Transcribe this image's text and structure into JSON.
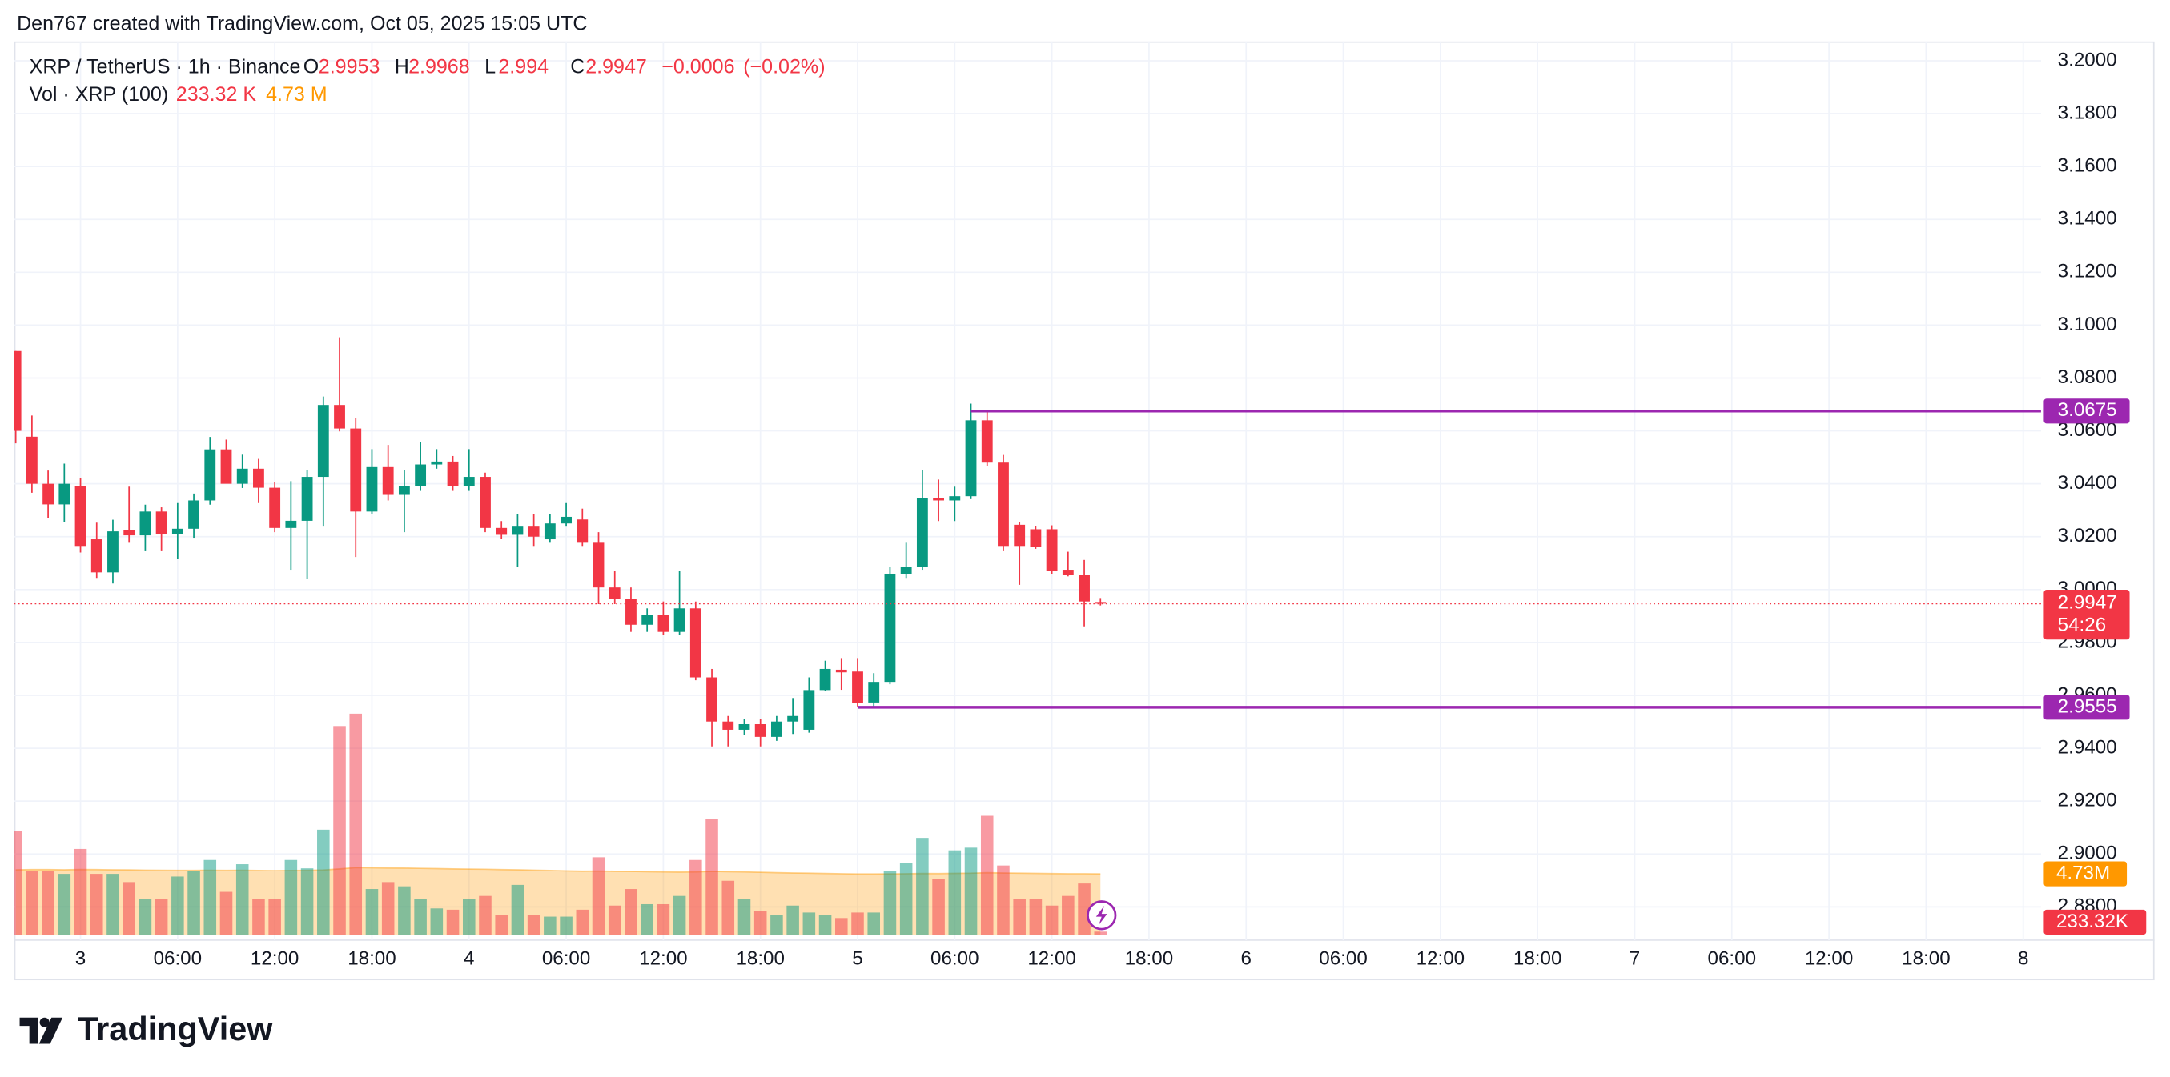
{
  "attribution": "Den767 created with TradingView.com, Oct 05, 2025 15:05 UTC",
  "footer": {
    "brand": "TradingView"
  },
  "chart_data": {
    "type": "candlestick",
    "title": "XRP / TetherUS · 1h · Binance",
    "legend_ohlc": [
      {
        "name": "O",
        "value": 2.9953
      },
      {
        "name": "H",
        "value": 2.9968
      },
      {
        "name": "L",
        "value": 2.994
      },
      {
        "name": "C",
        "value": 2.9947
      }
    ],
    "change": {
      "value": -0.0006,
      "label": "−0.0006"
    },
    "change_pct": {
      "value": -0.02,
      "label": "(−0.02%)"
    },
    "volume_title": "Vol · XRP (100)",
    "volume_legend": [
      {
        "value": 233320,
        "label": "233.32 K"
      },
      {
        "value": 4730000,
        "label": "4.73 M"
      }
    ],
    "open": [
      3.0902,
      3.0578,
      3.04,
      3.0322,
      3.039,
      3.019,
      3.0065,
      3.0225,
      3.0205,
      3.0295,
      3.021,
      3.023,
      3.0337,
      3.053,
      3.04,
      3.0457,
      3.0385,
      3.0233,
      3.026,
      3.0426,
      3.0698,
      3.0609,
      3.0295,
      3.0463,
      3.0358,
      3.039,
      3.0473,
      3.0484,
      3.039,
      3.0426,
      3.0233,
      3.0207,
      3.0238,
      3.019,
      3.025,
      3.0265,
      3.018,
      3.0008,
      2.9966,
      2.9867,
      2.9903,
      2.984,
      2.9929,
      2.9668,
      2.9501,
      2.947,
      2.9491,
      2.9443,
      2.9501,
      2.947,
      2.962,
      2.9697,
      2.969,
      2.9573,
      2.9651,
      3.006,
      3.0085,
      3.0347,
      3.0337,
      3.0353,
      3.064,
      3.048,
      3.0245,
      3.0228,
      3.0228,
      3.0075,
      3.0055,
      2.9953
    ],
    "high": [
      3.0902,
      3.0658,
      3.045,
      3.0476,
      3.042,
      3.0253,
      3.0264,
      3.0389,
      3.0321,
      3.0311,
      3.0327,
      3.0363,
      3.0577,
      3.0567,
      3.051,
      3.0494,
      3.0405,
      3.041,
      3.0452,
      3.073,
      3.0954,
      3.0647,
      3.0531,
      3.0547,
      3.0452,
      3.0557,
      3.0531,
      3.0505,
      3.0531,
      3.0442,
      3.0259,
      3.0285,
      3.0285,
      3.0285,
      3.0327,
      3.0306,
      3.0217,
      3.0071,
      3.0008,
      2.9929,
      2.9955,
      3.0071,
      2.9955,
      2.97,
      2.9522,
      2.9512,
      2.9512,
      2.9522,
      2.959,
      2.9668,
      2.9731,
      2.9741,
      2.9741,
      2.9684,
      3.0086,
      3.018,
      3.0453,
      3.0416,
      3.0389,
      3.0703,
      3.0675,
      3.0509,
      3.0255,
      3.024,
      3.0243,
      3.0143,
      3.0112,
      2.9968
    ],
    "low": [
      3.0553,
      3.0366,
      3.027,
      3.0255,
      3.014,
      3.0044,
      3.0023,
      3.018,
      3.0148,
      3.0148,
      3.0117,
      3.0196,
      3.0321,
      3.0415,
      3.0384,
      3.0327,
      3.0217,
      3.0075,
      3.004,
      3.0238,
      3.0598,
      3.0123,
      3.0285,
      3.0337,
      3.0217,
      3.0373,
      3.0457,
      3.0373,
      3.0373,
      3.0217,
      3.0191,
      3.0086,
      3.0165,
      3.018,
      3.0238,
      3.0165,
      2.9945,
      2.9945,
      2.984,
      2.984,
      2.983,
      2.983,
      2.9657,
      2.9407,
      2.9407,
      2.9449,
      2.9407,
      2.9428,
      2.9454,
      2.9459,
      2.9616,
      2.9621,
      2.9558,
      2.9558,
      2.9642,
      3.0044,
      3.0075,
      3.0259,
      3.0259,
      3.0342,
      3.0468,
      3.0148,
      3.0018,
      3.0154,
      3.006,
      3.005,
      2.9861,
      2.994
    ],
    "close": [
      3.06,
      3.04,
      3.0322,
      3.04,
      3.0165,
      3.0065,
      3.022,
      3.0205,
      3.0295,
      3.021,
      3.023,
      3.0337,
      3.053,
      3.04,
      3.0457,
      3.0385,
      3.0233,
      3.026,
      3.0426,
      3.0698,
      3.0609,
      3.0295,
      3.0463,
      3.0358,
      3.039,
      3.0473,
      3.0484,
      3.039,
      3.0426,
      3.0233,
      3.0207,
      3.0238,
      3.02,
      3.025,
      3.0275,
      3.018,
      3.0008,
      2.9966,
      2.9867,
      2.9903,
      2.984,
      2.9929,
      2.9668,
      2.9501,
      2.947,
      2.9491,
      2.9443,
      2.9501,
      2.9522,
      2.962,
      2.97,
      2.9687,
      2.957,
      2.9651,
      3.006,
      3.0085,
      3.0347,
      3.0337,
      3.0353,
      3.064,
      3.048,
      3.0165,
      3.0165,
      3.016,
      3.007,
      3.0055,
      2.9955,
      2.9947
    ],
    "volume": [
      8060000,
      4950000,
      4950000,
      4730000,
      6670000,
      4730000,
      4730000,
      4090000,
      2800000,
      2800000,
      4520000,
      4950000,
      5810000,
      3330000,
      5480000,
      2800000,
      2800000,
      5810000,
      5160000,
      8170000,
      16240000,
      17200000,
      3550000,
      4090000,
      3760000,
      2800000,
      2040000,
      1940000,
      2800000,
      3010000,
      1510000,
      3870000,
      1510000,
      1400000,
      1400000,
      1940000,
      6020000,
      2260000,
      3550000,
      2370000,
      2370000,
      3010000,
      5810000,
      9030000,
      4190000,
      2800000,
      1830000,
      1510000,
      2260000,
      1720000,
      1510000,
      1290000,
      1720000,
      1720000,
      4950000,
      5590000,
      7530000,
      4300000,
      6560000,
      6770000,
      9250000,
      5380000,
      2800000,
      2800000,
      2260000,
      3010000,
      3980000,
      233320
    ],
    "volume_ma": [
      5050000,
      5060000,
      5060000,
      5050000,
      5070000,
      5060000,
      5050000,
      5040000,
      5020000,
      5010000,
      5000000,
      5000000,
      5010000,
      5000000,
      5010000,
      4990000,
      4980000,
      4990000,
      5000000,
      5030000,
      5120000,
      5220000,
      5200000,
      5190000,
      5180000,
      5160000,
      5140000,
      5120000,
      5100000,
      5090000,
      5060000,
      5050000,
      5020000,
      4990000,
      4960000,
      4940000,
      4950000,
      4930000,
      4920000,
      4900000,
      4880000,
      4870000,
      4880000,
      4920000,
      4900000,
      4880000,
      4850000,
      4820000,
      4800000,
      4780000,
      4760000,
      4740000,
      4720000,
      4720000,
      4730000,
      4740000,
      4760000,
      4750000,
      4770000,
      4780000,
      4820000,
      4800000,
      4780000,
      4770000,
      4750000,
      4740000,
      4740000,
      4730000
    ],
    "up_color": "#089981",
    "down_color": "#f23645",
    "ma_color": "#ff9800",
    "line_color": "#9c27b0",
    "grid": true,
    "xlim": [
      -0.1,
      125.1
    ],
    "xticks": [
      {
        "value": 4,
        "label": "3"
      },
      {
        "value": 10,
        "label": "06:00"
      },
      {
        "value": 16,
        "label": "12:00"
      },
      {
        "value": 22,
        "label": "18:00"
      },
      {
        "value": 28,
        "label": "4"
      },
      {
        "value": 34,
        "label": "06:00"
      },
      {
        "value": 40,
        "label": "12:00"
      },
      {
        "value": 46,
        "label": "18:00"
      },
      {
        "value": 52,
        "label": "5"
      },
      {
        "value": 58,
        "label": "06:00"
      },
      {
        "value": 64,
        "label": "12:00"
      },
      {
        "value": 70,
        "label": "18:00"
      },
      {
        "value": 76,
        "label": "6"
      },
      {
        "value": 82,
        "label": "06:00"
      },
      {
        "value": 88,
        "label": "12:00"
      },
      {
        "value": 94,
        "label": "18:00"
      },
      {
        "value": 100,
        "label": "7"
      },
      {
        "value": 106,
        "label": "06:00"
      },
      {
        "value": 112,
        "label": "12:00"
      },
      {
        "value": 118,
        "label": "18:00"
      },
      {
        "value": 124,
        "label": "8"
      }
    ],
    "ylim": [
      2.8695,
      3.2073
    ],
    "yticks": [
      {
        "value": 2.88,
        "label": "2.8800"
      },
      {
        "value": 2.9,
        "label": "2.9000"
      },
      {
        "value": 2.92,
        "label": "2.9200"
      },
      {
        "value": 2.94,
        "label": "2.9400"
      },
      {
        "value": 2.96,
        "label": "2.9600"
      },
      {
        "value": 2.98,
        "label": "2.9800"
      },
      {
        "value": 3.0,
        "label": "3.0000"
      },
      {
        "value": 3.02,
        "label": "3.0200"
      },
      {
        "value": 3.04,
        "label": "3.0400"
      },
      {
        "value": 3.06,
        "label": "3.0600"
      },
      {
        "value": 3.08,
        "label": "3.0800"
      },
      {
        "value": 3.1,
        "label": "3.1000"
      },
      {
        "value": 3.12,
        "label": "3.1200"
      },
      {
        "value": 3.14,
        "label": "3.1400"
      },
      {
        "value": 3.16,
        "label": "3.1600"
      },
      {
        "value": 3.18,
        "label": "3.1800"
      },
      {
        "value": 3.2,
        "label": "3.2000"
      }
    ],
    "vol_ylim": [
      0,
      24000000
    ],
    "hlines": [
      {
        "value": 3.0675,
        "from": 59
      },
      {
        "value": 2.9555,
        "from": 52
      }
    ],
    "last_price": 2.9947,
    "countdown": "54:26",
    "vol_tags": [
      {
        "value": 4730000,
        "label": "4.73M"
      },
      {
        "value": 233320,
        "label": "233.32K"
      }
    ]
  }
}
